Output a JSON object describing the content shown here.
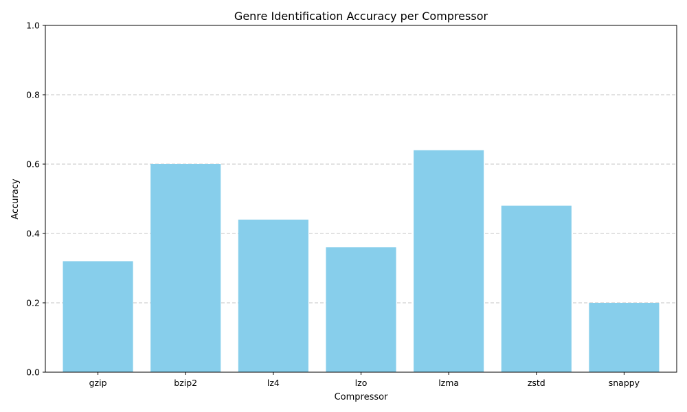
{
  "chart_data": {
    "type": "bar",
    "title": "Genre Identification Accuracy per Compressor",
    "xlabel": "Compressor",
    "ylabel": "Accuracy",
    "categories": [
      "gzip",
      "bzip2",
      "lz4",
      "lzo",
      "lzma",
      "zstd",
      "snappy"
    ],
    "values": [
      0.32,
      0.6,
      0.44,
      0.36,
      0.64,
      0.48,
      0.2
    ],
    "ylim": [
      0,
      1.0
    ],
    "yticks": [
      0.0,
      0.2,
      0.4,
      0.6,
      0.8,
      1.0
    ],
    "ytick_labels": [
      "0.0",
      "0.2",
      "0.4",
      "0.6",
      "0.8",
      "1.0"
    ],
    "grid": "y-dashed",
    "legend": "none",
    "colors": {
      "bar": "#87CEEB",
      "grid": "#c4c4c4",
      "axis": "#000000"
    }
  }
}
